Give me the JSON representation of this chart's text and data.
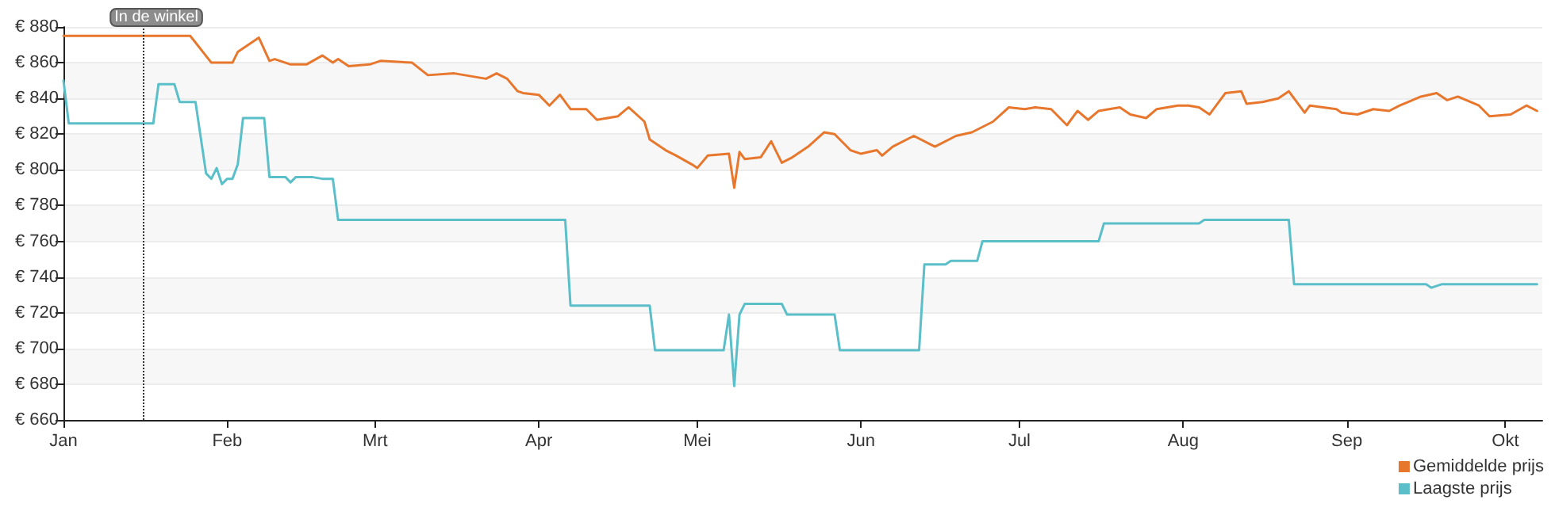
{
  "chart_data": {
    "type": "line",
    "xlim": [
      "--01-01",
      "--10-08"
    ],
    "xticks": [
      {
        "value": "--01-01",
        "label": "Jan"
      },
      {
        "value": "--02-01",
        "label": "Feb"
      },
      {
        "value": "--03-01",
        "label": "Mrt"
      },
      {
        "value": "--04-01",
        "label": "Apr"
      },
      {
        "value": "--05-01",
        "label": "Mei"
      },
      {
        "value": "--06-01",
        "label": "Jun"
      },
      {
        "value": "--07-01",
        "label": "Jul"
      },
      {
        "value": "--08-01",
        "label": "Aug"
      },
      {
        "value": "--09-01",
        "label": "Sep"
      },
      {
        "value": "--10-01",
        "label": "Okt"
      }
    ],
    "ylim": [
      660,
      880
    ],
    "yticks": [
      {
        "value": 660,
        "label": "€ 660"
      },
      {
        "value": 680,
        "label": "€ 680"
      },
      {
        "value": 700,
        "label": "€ 700"
      },
      {
        "value": 720,
        "label": "€ 720"
      },
      {
        "value": 740,
        "label": "€ 740"
      },
      {
        "value": 760,
        "label": "€ 760"
      },
      {
        "value": 780,
        "label": "€ 780"
      },
      {
        "value": 800,
        "label": "€ 800"
      },
      {
        "value": 820,
        "label": "€ 820"
      },
      {
        "value": 840,
        "label": "€ 840"
      },
      {
        "value": 860,
        "label": "€ 860"
      },
      {
        "value": 880,
        "label": "€ 880"
      }
    ],
    "grid": "y",
    "legend": "bottom right",
    "marker": "none",
    "line_style": "solid",
    "ref_lines": [
      {
        "axis": "x",
        "value": "--01-16",
        "label": "In de winkel",
        "line_style": "dotted",
        "color": "#333333"
      }
    ],
    "series": [
      {
        "name": "Gemiddelde prijs",
        "color": "#e8772e",
        "x": [
          "--01-01",
          "--01-25",
          "--01-29",
          "--02-02",
          "--02-03",
          "--02-07",
          "--02-09",
          "--02-10",
          "--02-13",
          "--02-16",
          "--02-19",
          "--02-21",
          "--02-22",
          "--02-24",
          "--02-28",
          "--03-02",
          "--03-08",
          "--03-11",
          "--03-16",
          "--03-22",
          "--03-24",
          "--03-26",
          "--03-28",
          "--03-29",
          "--04-01",
          "--04-03",
          "--04-05",
          "--04-07",
          "--04-10",
          "--04-12",
          "--04-16",
          "--04-18",
          "--04-21",
          "--04-22",
          "--04-25",
          "--04-27",
          "--04-30",
          "--05-01",
          "--05-03",
          "--05-07",
          "--05-08",
          "--05-09",
          "--05-10",
          "--05-13",
          "--05-15",
          "--05-17",
          "--05-19",
          "--05-22",
          "--05-25",
          "--05-27",
          "--05-30",
          "--06-01",
          "--06-04",
          "--06-05",
          "--06-07",
          "--06-11",
          "--06-15",
          "--06-19",
          "--06-22",
          "--06-26",
          "--06-29",
          "--07-02",
          "--07-04",
          "--07-07",
          "--07-10",
          "--07-12",
          "--07-14",
          "--07-16",
          "--07-20",
          "--07-22",
          "--07-25",
          "--07-27",
          "--07-31",
          "--08-02",
          "--08-04",
          "--08-06",
          "--08-09",
          "--08-12",
          "--08-13",
          "--08-16",
          "--08-19",
          "--08-21",
          "--08-24",
          "--08-25",
          "--08-30",
          "--08-31",
          "--09-03",
          "--09-06",
          "--09-09",
          "--09-11",
          "--09-15",
          "--09-18",
          "--09-20",
          "--09-22",
          "--09-26",
          "--09-28",
          "--10-02",
          "--10-05",
          "--10-07"
        ],
        "values": [
          875,
          875,
          860,
          860,
          866,
          874,
          861,
          862,
          859,
          859,
          864,
          860,
          862,
          858,
          859,
          861,
          860,
          853,
          854,
          851,
          854,
          851,
          844,
          843,
          842,
          836,
          842,
          834,
          834,
          828,
          830,
          835,
          827,
          817,
          811,
          808,
          803,
          801,
          808,
          809,
          790,
          810,
          806,
          807,
          816,
          804,
          807,
          813,
          821,
          820,
          811,
          809,
          811,
          808,
          813,
          819,
          813,
          819,
          821,
          827,
          835,
          834,
          835,
          834,
          825,
          833,
          828,
          833,
          835,
          831,
          829,
          834,
          836,
          836,
          835,
          831,
          843,
          844,
          837,
          838,
          840,
          844,
          832,
          836,
          834,
          832,
          831,
          834,
          833,
          836,
          841,
          843,
          839,
          841,
          836,
          830,
          831,
          836,
          833
        ]
      },
      {
        "name": "Laagste prijs",
        "color": "#5bbfc9",
        "x": [
          "--01-01",
          "--01-02",
          "--01-18",
          "--01-19",
          "--01-22",
          "--01-23",
          "--01-26",
          "--01-28",
          "--01-29",
          "--01-30",
          "--01-31",
          "--02-01",
          "--02-02",
          "--02-03",
          "--02-04",
          "--02-08",
          "--02-09",
          "--02-12",
          "--02-13",
          "--02-14",
          "--02-17",
          "--02-19",
          "--02-21",
          "--02-22",
          "--04-06",
          "--04-07",
          "--04-22",
          "--04-23",
          "--05-06",
          "--05-07",
          "--05-08",
          "--05-09",
          "--05-10",
          "--05-17",
          "--05-18",
          "--05-27",
          "--05-28",
          "--06-12",
          "--06-13",
          "--06-17",
          "--06-18",
          "--06-23",
          "--06-24",
          "--07-16",
          "--07-17",
          "--08-04",
          "--08-05",
          "--08-21",
          "--08-22",
          "--09-16",
          "--09-17",
          "--09-19",
          "--10-07"
        ],
        "values": [
          850,
          826,
          826,
          848,
          848,
          838,
          838,
          798,
          795,
          801,
          792,
          795,
          795,
          803,
          829,
          829,
          796,
          796,
          793,
          796,
          796,
          795,
          795,
          772,
          772,
          724,
          724,
          699,
          699,
          719,
          679,
          719,
          725,
          725,
          719,
          719,
          699,
          699,
          747,
          747,
          749,
          749,
          760,
          760,
          770,
          770,
          772,
          772,
          736,
          736,
          734,
          736,
          736
        ]
      }
    ]
  }
}
